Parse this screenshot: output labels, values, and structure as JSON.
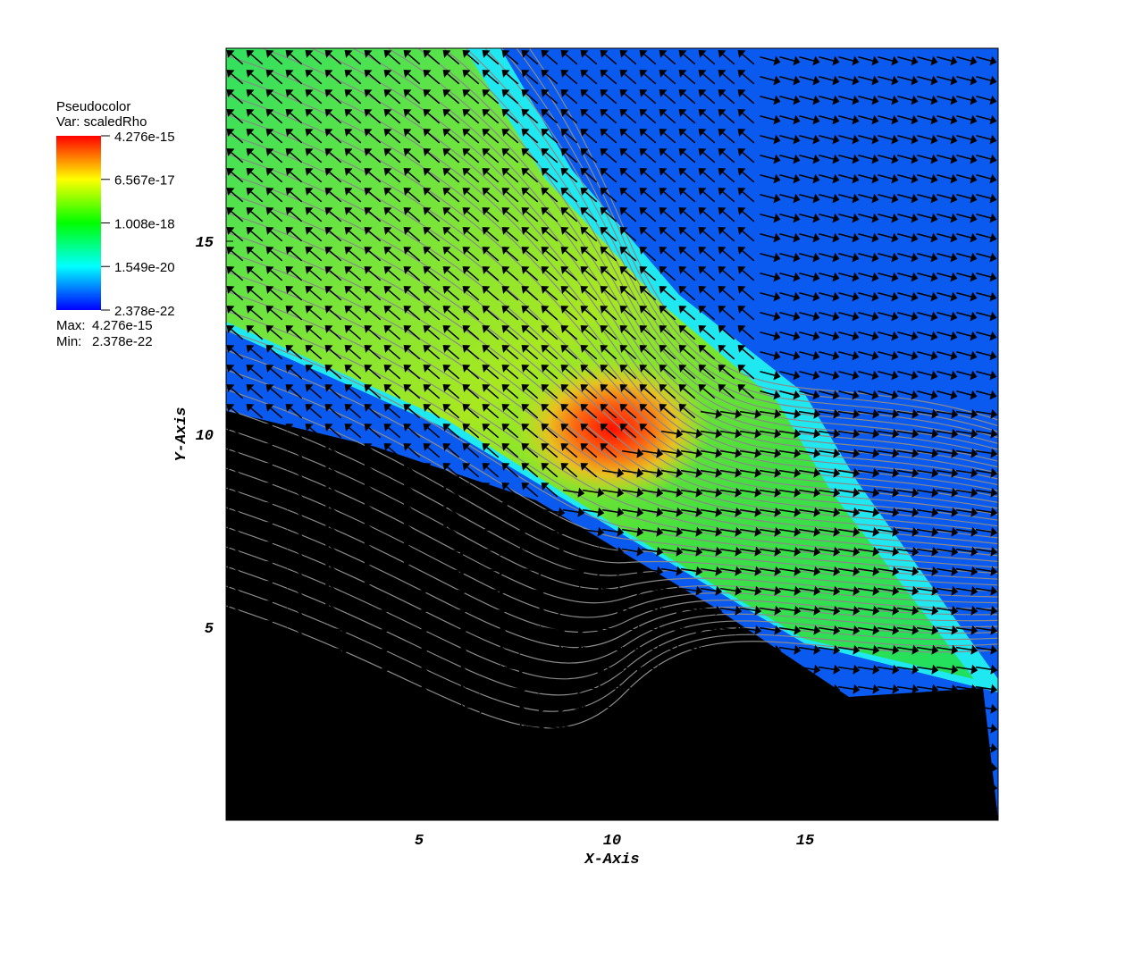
{
  "chart_data": {
    "type": "pseudocolor",
    "xlabel": "X-Axis",
    "ylabel": "Y-Axis",
    "xlim": [
      0,
      20
    ],
    "ylim": [
      0,
      20
    ],
    "xticks": [
      5,
      10,
      15
    ],
    "yticks": [
      5,
      10,
      15
    ],
    "legend": {
      "title": "Pseudocolor",
      "variable": "Var: scaledRho",
      "max_label": "Max:",
      "min_label": "Min:",
      "clim": [
        2.378e-22,
        4.276e-15
      ],
      "cticks": [
        2.378e-22,
        1.549e-20,
        1.008e-18,
        6.567e-17,
        4.276e-15
      ],
      "log": true,
      "colormap": [
        "#0000ff",
        "#00ffff",
        "#00ff00",
        "#ffff00",
        "#ff0000"
      ]
    }
  }
}
